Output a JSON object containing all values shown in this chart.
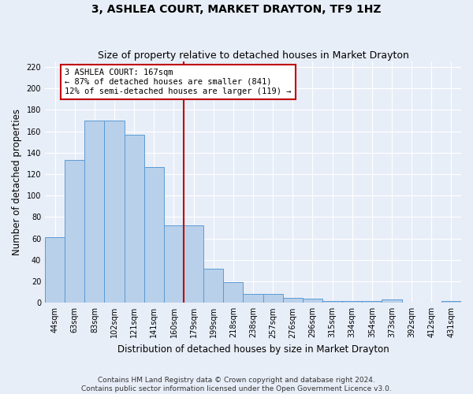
{
  "title": "3, ASHLEA COURT, MARKET DRAYTON, TF9 1HZ",
  "subtitle": "Size of property relative to detached houses in Market Drayton",
  "xlabel": "Distribution of detached houses by size in Market Drayton",
  "ylabel": "Number of detached properties",
  "footer_line1": "Contains HM Land Registry data © Crown copyright and database right 2024.",
  "footer_line2": "Contains public sector information licensed under the Open Government Licence v3.0.",
  "bar_labels": [
    "44sqm",
    "63sqm",
    "83sqm",
    "102sqm",
    "121sqm",
    "141sqm",
    "160sqm",
    "179sqm",
    "199sqm",
    "218sqm",
    "238sqm",
    "257sqm",
    "276sqm",
    "296sqm",
    "315sqm",
    "334sqm",
    "354sqm",
    "373sqm",
    "392sqm",
    "412sqm",
    "431sqm"
  ],
  "bar_values": [
    61,
    133,
    170,
    170,
    157,
    127,
    72,
    72,
    32,
    19,
    8,
    8,
    5,
    4,
    2,
    2,
    2,
    3,
    0,
    0,
    2
  ],
  "bar_color": "#b8d0ea",
  "bar_edge_color": "#5b9bd5",
  "annotation_text": "3 ASHLEA COURT: 167sqm\n← 87% of detached houses are smaller (841)\n12% of semi-detached houses are larger (119) →",
  "vline_bar_index": 6,
  "ylim": [
    0,
    225
  ],
  "yticks": [
    0,
    20,
    40,
    60,
    80,
    100,
    120,
    140,
    160,
    180,
    200,
    220
  ],
  "bg_color": "#e8eef8",
  "grid_color": "#d0d8e8",
  "title_fontsize": 10,
  "subtitle_fontsize": 9,
  "tick_fontsize": 7,
  "ylabel_fontsize": 8.5,
  "xlabel_fontsize": 8.5,
  "annotation_fontsize": 7.5,
  "footer_fontsize": 6.5
}
